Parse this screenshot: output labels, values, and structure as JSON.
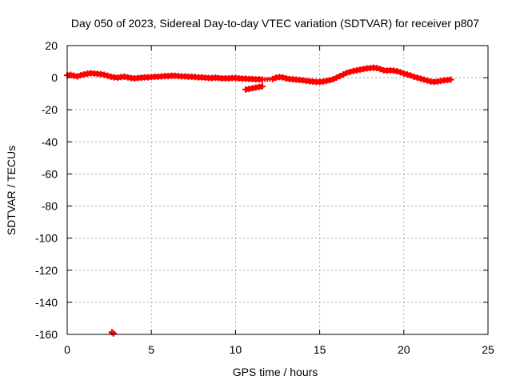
{
  "chart_data": {
    "type": "scatter",
    "title": "Day 050 of 2023, Sidereal Day-to-day VTEC variation (SDTVAR) for receiver p807",
    "xlabel": "GPS time / hours",
    "ylabel": "SDTVAR / TECUs",
    "xlim": [
      0,
      25
    ],
    "ylim": [
      -160,
      20
    ],
    "xticks": [
      0,
      5,
      10,
      15,
      20,
      25
    ],
    "yticks": [
      20,
      0,
      -20,
      -40,
      -60,
      -80,
      -100,
      -120,
      -140,
      -160
    ],
    "grid": true,
    "marker": "plus",
    "series": [
      {
        "name": "SDTVAR",
        "color": "#ff0000",
        "x": [
          0.0,
          0.2,
          0.4,
          0.6,
          0.8,
          1.0,
          1.2,
          1.4,
          1.6,
          1.8,
          2.0,
          2.2,
          2.4,
          2.6,
          2.8,
          3.0,
          3.2,
          3.4,
          3.6,
          3.8,
          4.0,
          4.2,
          4.4,
          4.6,
          4.8,
          5.0,
          5.2,
          5.4,
          5.6,
          5.8,
          6.0,
          6.2,
          6.4,
          6.6,
          6.8,
          7.0,
          7.2,
          7.4,
          7.6,
          7.8,
          8.0,
          8.2,
          8.4,
          8.6,
          8.8,
          9.0,
          9.2,
          9.4,
          9.6,
          9.8,
          10.0,
          10.2,
          10.4,
          10.6,
          10.8,
          11.0,
          11.2,
          11.4,
          11.6,
          12.2,
          12.4,
          12.6,
          12.8,
          13.0,
          13.2,
          13.4,
          13.6,
          13.8,
          14.0,
          14.2,
          14.4,
          14.6,
          14.8,
          15.0,
          15.2,
          15.4,
          15.6,
          15.8,
          16.0,
          16.2,
          16.4,
          16.6,
          16.8,
          17.0,
          17.2,
          17.4,
          17.6,
          17.8,
          18.0,
          18.2,
          18.4,
          18.6,
          18.8,
          19.0,
          19.2,
          19.4,
          19.6,
          19.8,
          20.0,
          20.2,
          20.4,
          20.6,
          20.8,
          21.0,
          21.2,
          21.4,
          21.6,
          21.8,
          22.0,
          22.2,
          22.4,
          22.6,
          22.8,
          10.6,
          10.8,
          11.0,
          11.2,
          11.4,
          11.6,
          2.65,
          2.75
        ],
        "y": [
          1.5,
          1.8,
          1.2,
          0.8,
          1.5,
          2.0,
          2.5,
          2.8,
          2.6,
          2.4,
          2.2,
          1.8,
          1.2,
          0.6,
          0.2,
          0.0,
          0.4,
          0.6,
          0.2,
          -0.2,
          -0.4,
          -0.2,
          0.0,
          0.2,
          0.2,
          0.4,
          0.6,
          0.6,
          0.8,
          1.0,
          1.0,
          1.2,
          1.2,
          1.0,
          0.8,
          0.8,
          0.6,
          0.6,
          0.4,
          0.2,
          0.2,
          0.0,
          -0.2,
          -0.2,
          0.0,
          -0.2,
          -0.4,
          -0.4,
          -0.4,
          -0.2,
          -0.2,
          -0.4,
          -0.6,
          -0.6,
          -0.8,
          -0.8,
          -1.0,
          -1.0,
          -1.2,
          -0.8,
          0.0,
          0.4,
          0.2,
          -0.4,
          -0.8,
          -1.0,
          -1.2,
          -1.4,
          -1.6,
          -2.0,
          -2.2,
          -2.4,
          -2.6,
          -2.6,
          -2.4,
          -2.0,
          -1.6,
          -1.0,
          0.0,
          1.0,
          2.0,
          3.0,
          3.6,
          4.2,
          4.6,
          5.0,
          5.4,
          5.8,
          6.0,
          6.2,
          6.0,
          5.4,
          4.6,
          4.4,
          4.6,
          4.4,
          4.0,
          3.4,
          2.6,
          2.0,
          1.4,
          0.6,
          0.0,
          -0.6,
          -1.2,
          -1.8,
          -2.4,
          -2.6,
          -2.4,
          -2.0,
          -1.6,
          -1.4,
          -1.2,
          -7.4,
          -7.0,
          -6.6,
          -6.2,
          -5.8,
          -5.4,
          -158.6,
          -159.4
        ]
      }
    ]
  }
}
